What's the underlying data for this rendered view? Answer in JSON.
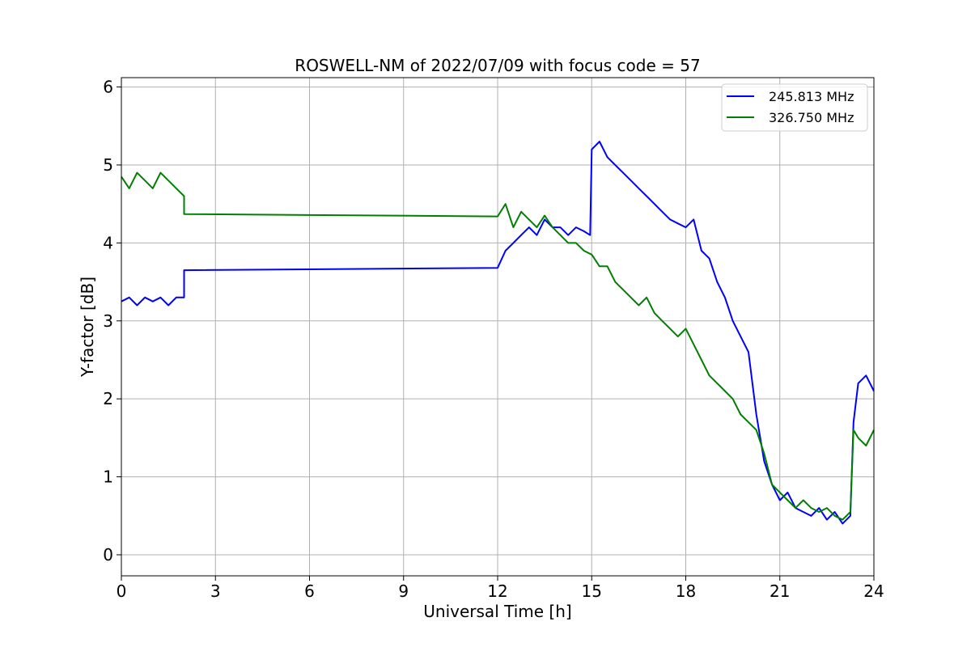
{
  "chart_data": {
    "type": "line",
    "title": "ROSWELL-NM of 2022/07/09 with focus code = 57",
    "xlabel": "Universal Time [h]",
    "ylabel": "Y-factor [dB]",
    "xlim": [
      0,
      24
    ],
    "ylim": [
      -0.27,
      6.12
    ],
    "xticks": [
      0,
      3,
      6,
      9,
      12,
      15,
      18,
      21,
      24
    ],
    "yticks": [
      0,
      1,
      2,
      3,
      4,
      5,
      6
    ],
    "grid": true,
    "legend_position": "top-right",
    "series": [
      {
        "name": "245.813 MHz",
        "color": "#0000ff",
        "x": [
          0.0,
          0.25,
          0.5,
          0.75,
          1.0,
          1.25,
          1.5,
          1.75,
          2.0,
          2.0,
          12.0,
          12.25,
          12.5,
          12.75,
          13.0,
          13.25,
          13.5,
          13.75,
          14.0,
          14.25,
          14.5,
          14.75,
          14.95,
          15.0,
          15.25,
          15.5,
          15.75,
          16.0,
          16.25,
          16.5,
          16.75,
          17.0,
          17.25,
          17.5,
          17.75,
          18.0,
          18.25,
          18.5,
          18.75,
          19.0,
          19.25,
          19.5,
          19.75,
          20.0,
          20.25,
          20.5,
          20.75,
          21.0,
          21.25,
          21.5,
          21.75,
          22.0,
          22.25,
          22.5,
          22.75,
          23.0,
          23.25,
          23.35,
          23.5,
          23.75,
          24.0
        ],
        "y": [
          3.25,
          3.3,
          3.2,
          3.3,
          3.25,
          3.3,
          3.2,
          3.3,
          3.3,
          3.65,
          3.68,
          3.9,
          4.0,
          4.1,
          4.2,
          4.1,
          4.3,
          4.2,
          4.2,
          4.1,
          4.2,
          4.15,
          4.1,
          5.2,
          5.3,
          5.1,
          5.0,
          4.9,
          4.8,
          4.7,
          4.6,
          4.5,
          4.4,
          4.3,
          4.25,
          4.2,
          4.3,
          3.9,
          3.8,
          3.5,
          3.3,
          3.0,
          2.8,
          2.6,
          1.8,
          1.2,
          0.9,
          0.7,
          0.8,
          0.6,
          0.55,
          0.5,
          0.6,
          0.45,
          0.55,
          0.4,
          0.5,
          1.7,
          2.2,
          2.3,
          2.1
        ]
      },
      {
        "name": "326.750 MHz",
        "color": "#008000",
        "x": [
          0.0,
          0.25,
          0.5,
          0.75,
          1.0,
          1.25,
          1.5,
          1.75,
          2.0,
          2.0,
          12.0,
          12.25,
          12.5,
          12.75,
          13.0,
          13.25,
          13.5,
          13.75,
          14.0,
          14.25,
          14.5,
          14.75,
          15.0,
          15.25,
          15.5,
          15.75,
          16.0,
          16.25,
          16.5,
          16.75,
          17.0,
          17.25,
          17.5,
          17.75,
          18.0,
          18.25,
          18.5,
          18.75,
          19.0,
          19.25,
          19.5,
          19.75,
          20.0,
          20.25,
          20.5,
          20.75,
          21.0,
          21.25,
          21.5,
          21.75,
          22.0,
          22.25,
          22.5,
          22.75,
          23.0,
          23.25,
          23.35,
          23.5,
          23.75,
          24.0
        ],
        "y": [
          4.85,
          4.7,
          4.9,
          4.8,
          4.7,
          4.9,
          4.8,
          4.7,
          4.6,
          4.37,
          4.34,
          4.5,
          4.2,
          4.4,
          4.3,
          4.2,
          4.35,
          4.2,
          4.1,
          4.0,
          4.0,
          3.9,
          3.85,
          3.7,
          3.7,
          3.5,
          3.4,
          3.3,
          3.2,
          3.3,
          3.1,
          3.0,
          2.9,
          2.8,
          2.9,
          2.7,
          2.5,
          2.3,
          2.2,
          2.1,
          2.0,
          1.8,
          1.7,
          1.6,
          1.3,
          0.9,
          0.8,
          0.7,
          0.6,
          0.7,
          0.6,
          0.55,
          0.6,
          0.5,
          0.45,
          0.55,
          1.6,
          1.5,
          1.4,
          1.6
        ]
      }
    ]
  }
}
